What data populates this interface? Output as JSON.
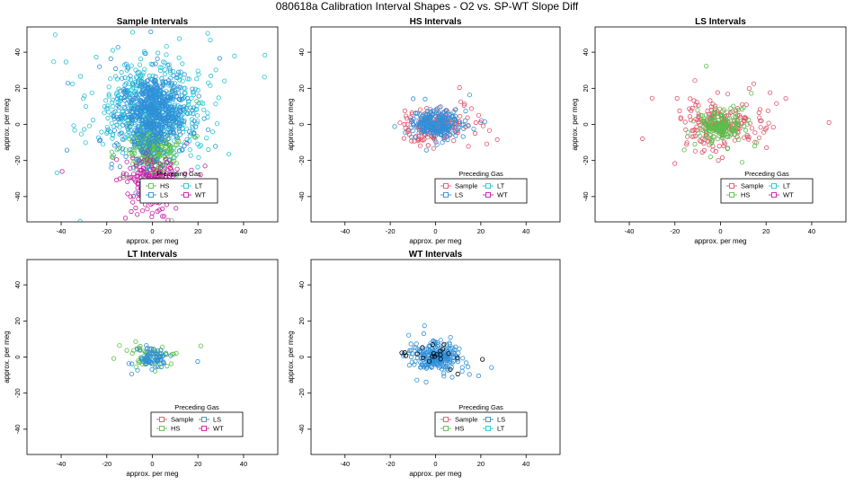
{
  "title": "080618a   Calibration Interval Shapes - O2 vs. SP-WT Slope Diff",
  "colors": {
    "Sample": "#e2556a",
    "HS": "#5bbf4a",
    "LS": "#2f8fd8",
    "LT": "#27c3d9",
    "WT": "#c81fa6",
    "black": "#000000"
  },
  "chart_data": [
    {
      "type": "scatter",
      "title": "Sample Intervals",
      "xlabel": "approx. per meg",
      "ylabel": "approx. per meg",
      "xlim": [
        -55,
        55
      ],
      "ylim": [
        -54,
        54
      ],
      "xticks": [
        -40,
        -20,
        0,
        20,
        40
      ],
      "yticks": [
        -40,
        -20,
        0,
        20,
        40
      ],
      "legend": {
        "title": "Preceding Gas",
        "location": "bottom-center",
        "entries": [
          "HS",
          "LT",
          "LS",
          "WT"
        ]
      },
      "series": [
        {
          "name": "LT",
          "n": 520,
          "cx": 0,
          "cy": 8,
          "sx": 11,
          "sy": 13
        },
        {
          "name": "HS",
          "n": 260,
          "cx": 0,
          "cy": -15,
          "sx": 5,
          "sy": 7
        },
        {
          "name": "WT",
          "n": 230,
          "cx": 0,
          "cy": -33,
          "sx": 6,
          "sy": 8
        },
        {
          "name": "LS",
          "n": 620,
          "cx": 0,
          "cy": 6,
          "sx": 7,
          "sy": 10
        }
      ]
    },
    {
      "type": "scatter",
      "title": "HS Intervals",
      "xlabel": "approx. per meg",
      "ylabel": "approx. per meg",
      "xlim": [
        -55,
        55
      ],
      "ylim": [
        -54,
        54
      ],
      "xticks": [
        -40,
        -20,
        0,
        20,
        40
      ],
      "yticks": [
        -40,
        -20,
        0,
        20,
        40
      ],
      "legend": {
        "title": "Preceding Gas",
        "location": "bottom-center",
        "entries": [
          "Sample",
          "LT",
          "LS",
          "WT"
        ]
      },
      "series": [
        {
          "name": "Sample",
          "n": 170,
          "cx": 0,
          "cy": 0,
          "sx": 8,
          "sy": 5
        },
        {
          "name": "LS",
          "n": 230,
          "cx": 0,
          "cy": 0,
          "sx": 5,
          "sy": 4
        }
      ]
    },
    {
      "type": "scatter",
      "title": "LS Intervals",
      "xlabel": "approx. per meg",
      "ylabel": "approx. per meg",
      "xlim": [
        -55,
        55
      ],
      "ylim": [
        -54,
        54
      ],
      "xticks": [
        -40,
        -20,
        0,
        20,
        40
      ],
      "yticks": [
        -40,
        -20,
        0,
        20,
        40
      ],
      "legend": {
        "title": "Preceding Gas",
        "location": "bottom-center",
        "entries": [
          "Sample",
          "LT",
          "HS",
          "WT"
        ]
      },
      "series": [
        {
          "name": "Sample",
          "n": 200,
          "cx": 0,
          "cy": 0,
          "sx": 9,
          "sy": 6
        },
        {
          "name": "HS",
          "n": 180,
          "cx": 0,
          "cy": -1,
          "sx": 5,
          "sy": 4
        }
      ]
    },
    {
      "type": "scatter",
      "title": "LT Intervals",
      "xlabel": "approx. per meg",
      "ylabel": "approx. per meg",
      "xlim": [
        -55,
        55
      ],
      "ylim": [
        -54,
        54
      ],
      "xticks": [
        -40,
        -20,
        0,
        20,
        40
      ],
      "yticks": [
        -40,
        -20,
        0,
        20,
        40
      ],
      "legend": {
        "title": "Preceding Gas",
        "location": "bottom-center",
        "entries": [
          "Sample",
          "LS",
          "HS",
          "WT"
        ]
      },
      "series": [
        {
          "name": "HS",
          "n": 60,
          "cx": 0,
          "cy": 1,
          "sx": 5,
          "sy": 3
        },
        {
          "name": "LS",
          "n": 70,
          "cx": 0,
          "cy": -1,
          "sx": 4,
          "sy": 3
        }
      ]
    },
    {
      "type": "scatter",
      "title": "WT Intervals",
      "xlabel": "approx. per meg",
      "ylabel": "approx. per meg",
      "xlim": [
        -55,
        55
      ],
      "ylim": [
        -54,
        54
      ],
      "xticks": [
        -40,
        -20,
        0,
        20,
        40
      ],
      "yticks": [
        -40,
        -20,
        0,
        20,
        40
      ],
      "legend": {
        "title": "Preceding Gas",
        "location": "bottom-center",
        "entries": [
          "Sample",
          "LS",
          "HS",
          "LT"
        ]
      },
      "series": [
        {
          "name": "LS",
          "n": 230,
          "cx": 0,
          "cy": 0,
          "sx": 5,
          "sy": 4
        },
        {
          "name": "black",
          "n": 22,
          "cx": -1,
          "cy": 1,
          "sx": 6,
          "sy": 3
        }
      ]
    }
  ]
}
